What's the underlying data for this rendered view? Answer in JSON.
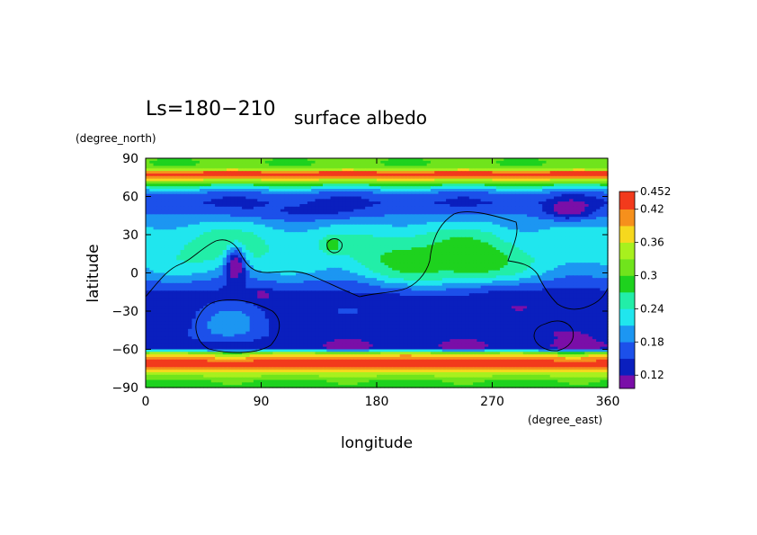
{
  "chart_data": {
    "type": "heatmap",
    "title": "Ls=180−210",
    "subtitle": "surface albedo",
    "xlabel": "longitude",
    "ylabel": "latitude",
    "x_unit": "(degree_east)",
    "y_unit": "(degree_north)",
    "xlim": [
      0,
      360
    ],
    "ylim": [
      -90,
      90
    ],
    "x_ticks": [
      0,
      90,
      180,
      270,
      360
    ],
    "y_ticks": [
      90,
      60,
      30,
      0,
      -30,
      -60,
      -90
    ],
    "x_tick_labels": [
      "0",
      "90",
      "180",
      "270",
      "360"
    ],
    "y_tick_labels": [
      "90",
      "60",
      "30",
      "0",
      "−30",
      "−60",
      "−90"
    ],
    "colorbar": {
      "min": 0.096,
      "max": 0.452,
      "tick_labels": [
        "0.452",
        "0.42",
        "0.36",
        "0.3",
        "0.24",
        "0.18",
        "0.12"
      ],
      "tick_values": [
        0.452,
        0.42,
        0.36,
        0.3,
        0.24,
        0.18,
        0.12
      ],
      "levels": [
        0.096,
        0.12,
        0.15,
        0.18,
        0.21,
        0.24,
        0.27,
        0.3,
        0.33,
        0.36,
        0.39,
        0.42,
        0.452
      ],
      "colors": [
        "#7a0ea8",
        "#0a1fbe",
        "#1c50ea",
        "#1c96f2",
        "#20e6ee",
        "#22eea8",
        "#1ed21e",
        "#70e41c",
        "#a8f01e",
        "#f6d81e",
        "#f6901c",
        "#f23a1c"
      ]
    },
    "field_features": [
      {
        "lon": 60,
        "lat": 20,
        "r_lon": 45,
        "r_lat": 15,
        "value": 0.26
      },
      {
        "lon": 250,
        "lat": 10,
        "r_lon": 40,
        "r_lat": 18,
        "value": 0.31
      },
      {
        "lon": 205,
        "lat": 12,
        "r_lon": 45,
        "r_lat": 18,
        "value": 0.28
      },
      {
        "lon": 145,
        "lat": 22,
        "r_lon": 8,
        "r_lat": 6,
        "value": 0.29
      },
      {
        "lon": 70,
        "lat": 5,
        "r_lon": 8,
        "r_lat": 15,
        "value": 0.1
      },
      {
        "lon": 90,
        "lat": -17,
        "r_lon": 6,
        "r_lat": 4,
        "value": 0.1
      },
      {
        "lon": 330,
        "lat": 50,
        "r_lon": 18,
        "r_lat": 8,
        "value": 0.1
      },
      {
        "lon": 65,
        "lat": -42,
        "r_lon": 28,
        "r_lat": 15,
        "value": 0.2
      },
      {
        "lon": 325,
        "lat": -45,
        "r_lon": 30,
        "r_lat": 12,
        "value": 0.12
      },
      {
        "lon": 125,
        "lat": 50,
        "r_lon": 45,
        "r_lat": 8,
        "value": 0.14
      },
      {
        "lon": 280,
        "lat": -25,
        "r_lon": 40,
        "r_lat": 12,
        "value": 0.13
      }
    ]
  }
}
